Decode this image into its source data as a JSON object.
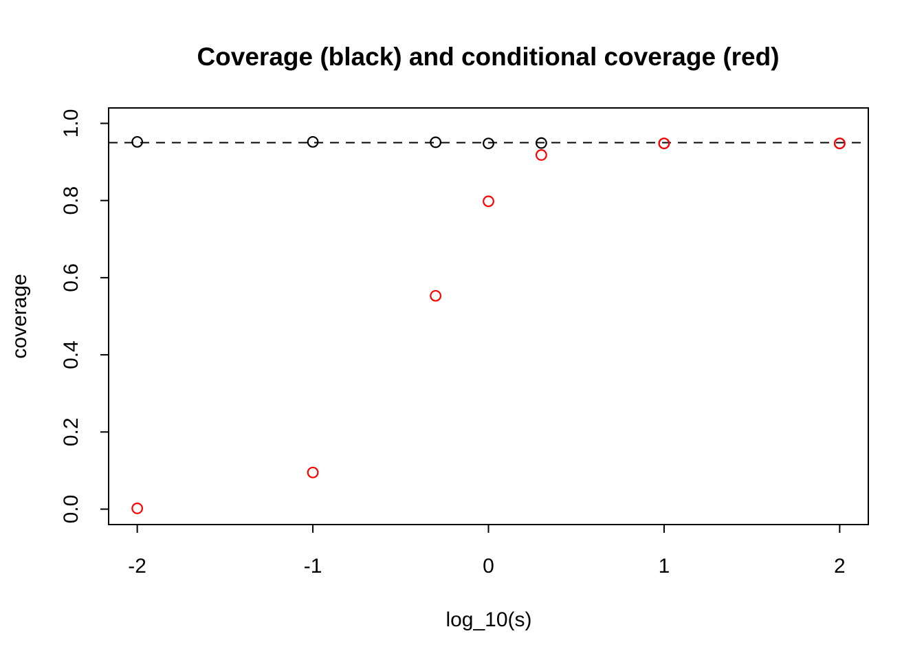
{
  "chart_data": {
    "type": "scatter",
    "title": "Coverage (black) and conditional coverage (red)",
    "xlabel": "log_10(s)",
    "ylabel": "coverage",
    "x": [
      -2,
      -1,
      -0.301,
      0,
      0.301,
      1,
      2
    ],
    "series": [
      {
        "name": "coverage",
        "color": "#000000",
        "marker": "open-circle",
        "values": [
          0.952,
          0.952,
          0.951,
          0.948,
          0.949,
          0.948,
          0.948
        ]
      },
      {
        "name": "conditional-coverage",
        "color": "#ff0000",
        "marker": "open-circle",
        "values": [
          0.002,
          0.095,
          0.553,
          0.798,
          0.918,
          0.948,
          0.948
        ]
      }
    ],
    "reference_line": {
      "y": 0.95,
      "style": "dashed",
      "color": "#000000"
    },
    "x_tick_values": [
      -2,
      -1,
      0,
      1,
      2
    ],
    "x_tick_labels": [
      "-2",
      "-1",
      "0",
      "1",
      "2"
    ],
    "y_tick_values": [
      0.0,
      0.2,
      0.4,
      0.6,
      0.8,
      1.0
    ],
    "y_tick_labels": [
      "0.0",
      "0.2",
      "0.4",
      "0.6",
      "0.8",
      "1.0"
    ],
    "xlim": [
      -2.163,
      2.163
    ],
    "ylim": [
      -0.04,
      1.04
    ],
    "grid": false,
    "legend": "none",
    "axis_color": "#000000",
    "background": "#ffffff"
  }
}
